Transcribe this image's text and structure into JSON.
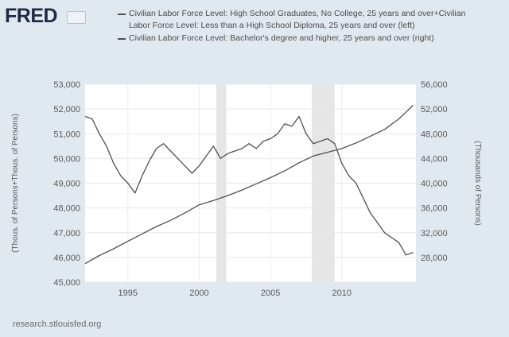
{
  "brand": {
    "logo_text": "FRED"
  },
  "source_text": "research.stlouisfed.org",
  "colors": {
    "background": "#e1e9f0",
    "plot": "#ffffff",
    "recession": "#e6e6e6",
    "line": "#4f4f4f"
  },
  "chart_data": {
    "type": "line",
    "title": "",
    "legend": [
      {
        "label": "Civilian Labor Force Level: High School Graduates, No College, 25 years and over+Civilian Labor Force Level: Less than a High School Diploma, 25 years and over (left)"
      },
      {
        "label": "Civilian Labor Force Level: Bachelor's degree and higher, 25 years and over (right)"
      }
    ],
    "legend_placement": "top",
    "xlim": [
      1992,
      2015.2
    ],
    "x_ticks": [
      "1995",
      "2000",
      "2005",
      "2010"
    ],
    "y_left": {
      "label": "(Thous. of Persons+Thous. of Persons)",
      "lim": [
        45000,
        53000
      ],
      "ticks": [
        "45,000",
        "46,000",
        "47,000",
        "48,000",
        "49,000",
        "50,000",
        "51,000",
        "52,000",
        "53,000"
      ]
    },
    "y_right": {
      "label": "(Thousands of Persons)",
      "lim": [
        24000,
        56000
      ],
      "ticks": [
        "28,000",
        "32,000",
        "36,000",
        "40,000",
        "44,000",
        "48,000",
        "52,000",
        "56,000"
      ]
    },
    "recessions": [
      [
        2001.2,
        2001.9
      ],
      [
        2007.9,
        2009.5
      ]
    ],
    "grid": true,
    "series": [
      {
        "axis": "left",
        "x": [
          1992.0,
          1992.5,
          1993.0,
          1993.5,
          1994.0,
          1994.5,
          1995.0,
          1995.5,
          1996.0,
          1996.5,
          1997.0,
          1997.5,
          1998.0,
          1998.5,
          1999.0,
          1999.5,
          2000.0,
          2000.5,
          2001.0,
          2001.5,
          2002.0,
          2002.5,
          2003.0,
          2003.5,
          2004.0,
          2004.5,
          2005.0,
          2005.5,
          2006.0,
          2006.5,
          2007.0,
          2007.5,
          2008.0,
          2008.5,
          2009.0,
          2009.5,
          2010.0,
          2010.5,
          2011.0,
          2011.5,
          2012.0,
          2012.5,
          2013.0,
          2013.5,
          2014.0,
          2014.5,
          2015.0
        ],
        "values": [
          51700,
          51600,
          51000,
          50500,
          49800,
          49300,
          49000,
          48600,
          49300,
          49900,
          50400,
          50600,
          50300,
          50000,
          49700,
          49400,
          49700,
          50100,
          50500,
          50000,
          50200,
          50300,
          50400,
          50600,
          50400,
          50700,
          50800,
          51000,
          51400,
          51300,
          51700,
          51000,
          50600,
          50700,
          50800,
          50600,
          49800,
          49300,
          49000,
          48400,
          47800,
          47400,
          47000,
          46800,
          46600,
          46100,
          46200
        ]
      },
      {
        "axis": "right",
        "x": [
          1992.0,
          1993.0,
          1994.0,
          1995.0,
          1996.0,
          1997.0,
          1998.0,
          1999.0,
          2000.0,
          2001.0,
          2002.0,
          2003.0,
          2004.0,
          2005.0,
          2006.0,
          2007.0,
          2008.0,
          2009.0,
          2010.0,
          2011.0,
          2012.0,
          2013.0,
          2014.0,
          2015.0
        ],
        "values": [
          27000,
          28300,
          29400,
          30600,
          31800,
          33000,
          34000,
          35200,
          36500,
          37200,
          38000,
          38900,
          39900,
          40900,
          42000,
          43300,
          44400,
          45000,
          45600,
          46500,
          47600,
          48700,
          50400,
          52600
        ]
      }
    ]
  }
}
